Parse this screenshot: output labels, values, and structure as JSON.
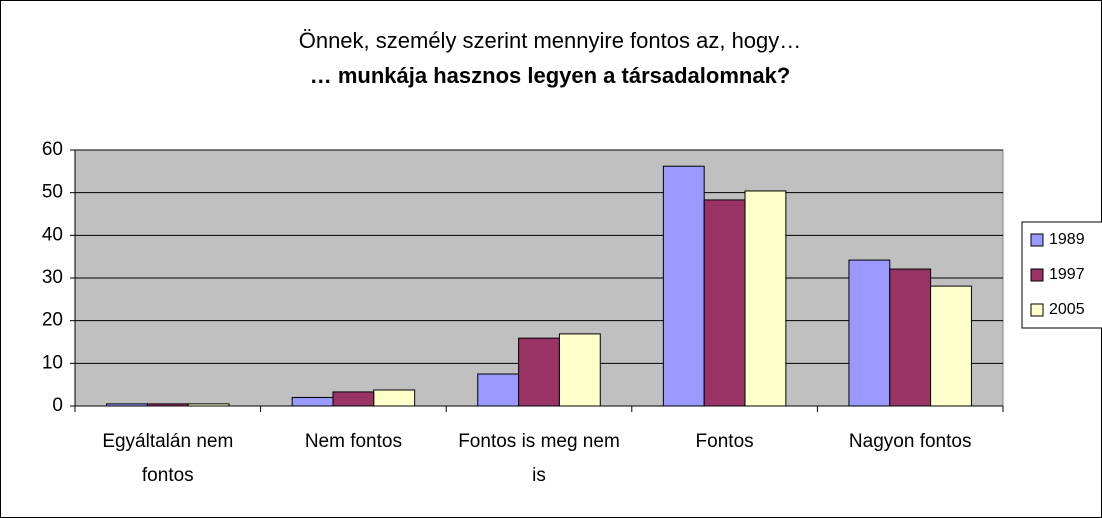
{
  "chart_data": {
    "type": "bar",
    "title": [
      "Önnek, személy szerint mennyire fontos az, hogy…",
      "… munkája hasznos legyen a társadalomnak?"
    ],
    "categories": [
      "Egyáltalán nem fontos",
      "Nem fontos",
      "Fontos is meg nem is",
      "Fontos",
      "Nagyon fontos"
    ],
    "series": [
      {
        "name": "1989",
        "color": "#9999ff",
        "values": [
          0.5,
          2,
          7.5,
          56.2,
          34.2
        ]
      },
      {
        "name": "1997",
        "color": "#993366",
        "values": [
          0.5,
          3.3,
          15.9,
          48.3,
          32.1
        ]
      },
      {
        "name": "2005",
        "color": "#ffffcc",
        "values": [
          0.5,
          3.75,
          16.9,
          50.4,
          28.1
        ]
      }
    ],
    "ylim": [
      0,
      60
    ],
    "yticks": [
      0,
      10,
      20,
      30,
      40,
      50,
      60
    ],
    "grid": true,
    "legend": "right"
  }
}
